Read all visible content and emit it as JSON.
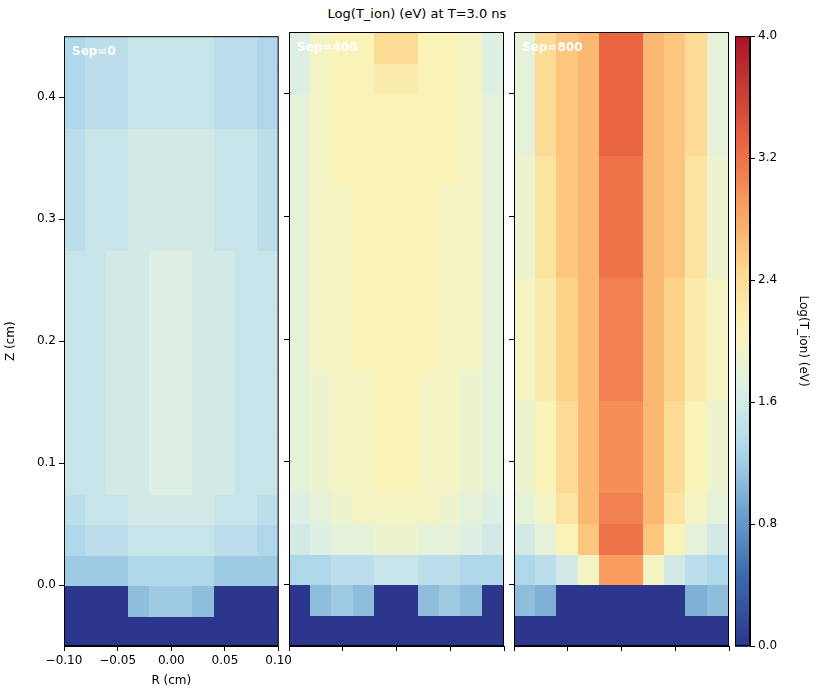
{
  "title": "Log(T_ion) (eV) at T=3.0 ns",
  "colorbar": {
    "label": "Log(T_ion) (eV)",
    "range": [
      0,
      4
    ],
    "ticks": [
      {
        "value": 0,
        "label": "0.0"
      },
      {
        "value": 0.8,
        "label": "0.8"
      },
      {
        "value": 1.6,
        "label": "1.6"
      },
      {
        "value": 2.4,
        "label": "2.4"
      },
      {
        "value": 3.2,
        "label": "3.2"
      },
      {
        "value": 4,
        "label": "4.0"
      }
    ]
  },
  "chart_data": [
    {
      "type": "heatmap",
      "annotation": "Sep=0",
      "xlabel": "R (cm)",
      "ylabel": "Z (cm)",
      "grid": false,
      "xlim": [
        -0.1,
        0.1
      ],
      "ylim": [
        -0.05,
        0.45
      ],
      "xticks": [
        {
          "value": -0.1,
          "label": "−0.10"
        },
        {
          "value": -0.05,
          "label": "−0.05"
        },
        {
          "value": 0,
          "label": "0.00"
        },
        {
          "value": 0.05,
          "label": "0.05"
        },
        {
          "value": 0.1,
          "label": "0.10"
        }
      ],
      "yticks": [
        {
          "value": 0,
          "label": "0.0"
        },
        {
          "value": 0.1,
          "label": "0.1"
        },
        {
          "value": 0.2,
          "label": "0.2"
        },
        {
          "value": 0.3,
          "label": "0.3"
        },
        {
          "value": 0.4,
          "label": "0.4"
        }
      ],
      "x": [
        -0.09,
        -0.07,
        -0.05,
        -0.03,
        -0.01,
        0.01,
        0.03,
        0.05,
        0.07,
        0.09
      ],
      "y": [
        -0.0375,
        -0.0125,
        0.0125,
        0.0375,
        0.0625,
        0.0875,
        0.1125,
        0.1375,
        0.1625,
        0.1875,
        0.2125,
        0.2375,
        0.2625,
        0.2875,
        0.3125,
        0.3375,
        0.3625,
        0.3875,
        0.4125,
        0.4375
      ],
      "values": [
        [
          0,
          0,
          0,
          0,
          0,
          0,
          0,
          0,
          0,
          0
        ],
        [
          0,
          0,
          0,
          1.1,
          1.2,
          1.2,
          1.1,
          0,
          0,
          0
        ],
        [
          1.2,
          1.2,
          1.2,
          1.3,
          1.3,
          1.3,
          1.3,
          1.2,
          1.2,
          1.2
        ],
        [
          1.3,
          1.4,
          1.4,
          1.5,
          1.5,
          1.5,
          1.5,
          1.4,
          1.4,
          1.3
        ],
        [
          1.4,
          1.5,
          1.5,
          1.6,
          1.6,
          1.6,
          1.6,
          1.5,
          1.5,
          1.4
        ],
        [
          1.5,
          1.5,
          1.6,
          1.6,
          1.7,
          1.7,
          1.6,
          1.6,
          1.5,
          1.5
        ],
        [
          1.5,
          1.5,
          1.6,
          1.6,
          1.7,
          1.7,
          1.6,
          1.6,
          1.5,
          1.5
        ],
        [
          1.5,
          1.5,
          1.6,
          1.6,
          1.7,
          1.7,
          1.6,
          1.6,
          1.5,
          1.5
        ],
        [
          1.5,
          1.5,
          1.6,
          1.6,
          1.7,
          1.7,
          1.6,
          1.6,
          1.5,
          1.5
        ],
        [
          1.5,
          1.5,
          1.6,
          1.6,
          1.7,
          1.7,
          1.6,
          1.6,
          1.5,
          1.5
        ],
        [
          1.5,
          1.5,
          1.6,
          1.6,
          1.7,
          1.7,
          1.6,
          1.6,
          1.5,
          1.5
        ],
        [
          1.5,
          1.5,
          1.6,
          1.6,
          1.7,
          1.7,
          1.6,
          1.6,
          1.5,
          1.5
        ],
        [
          1.5,
          1.5,
          1.6,
          1.6,
          1.7,
          1.7,
          1.6,
          1.6,
          1.5,
          1.5
        ],
        [
          1.4,
          1.5,
          1.5,
          1.6,
          1.6,
          1.6,
          1.6,
          1.5,
          1.5,
          1.4
        ],
        [
          1.4,
          1.5,
          1.5,
          1.6,
          1.6,
          1.6,
          1.6,
          1.5,
          1.5,
          1.4
        ],
        [
          1.4,
          1.5,
          1.5,
          1.6,
          1.6,
          1.6,
          1.6,
          1.5,
          1.5,
          1.4
        ],
        [
          1.4,
          1.5,
          1.5,
          1.6,
          1.6,
          1.6,
          1.6,
          1.5,
          1.5,
          1.4
        ],
        [
          1.3,
          1.4,
          1.4,
          1.5,
          1.5,
          1.5,
          1.5,
          1.4,
          1.4,
          1.3
        ],
        [
          1.3,
          1.4,
          1.4,
          1.5,
          1.5,
          1.5,
          1.5,
          1.4,
          1.4,
          1.3
        ],
        [
          1.3,
          1.4,
          1.4,
          1.5,
          1.5,
          1.5,
          1.5,
          1.4,
          1.4,
          1.3
        ]
      ]
    },
    {
      "type": "heatmap",
      "annotation": "Sep=400",
      "grid": false,
      "tick_labels": false,
      "xlim": [
        -0.1,
        0.1
      ],
      "ylim": [
        -0.05,
        0.45
      ],
      "xticks": [
        -0.1,
        -0.05,
        0,
        0.05,
        0.1
      ],
      "yticks": [
        0,
        0.1,
        0.2,
        0.3,
        0.4
      ],
      "x": [
        -0.09,
        -0.07,
        -0.05,
        -0.03,
        -0.01,
        0.01,
        0.03,
        0.05,
        0.07,
        0.09
      ],
      "y": [
        -0.0375,
        -0.0125,
        0.0125,
        0.0375,
        0.0625,
        0.0875,
        0.1125,
        0.1375,
        0.1625,
        0.1875,
        0.2125,
        0.2375,
        0.2625,
        0.2875,
        0.3125,
        0.3375,
        0.3625,
        0.3875,
        0.4125,
        0.4375
      ],
      "values": [
        [
          0,
          0,
          0,
          0,
          0,
          0,
          0,
          0,
          0,
          0
        ],
        [
          0,
          1.1,
          1.2,
          1.1,
          0,
          0,
          1.1,
          1.2,
          1.1,
          0
        ],
        [
          1.3,
          1.3,
          1.4,
          1.4,
          1.5,
          1.5,
          1.4,
          1.4,
          1.3,
          1.3
        ],
        [
          1.6,
          1.7,
          1.8,
          1.8,
          1.9,
          1.9,
          1.8,
          1.8,
          1.7,
          1.6
        ],
        [
          1.7,
          1.8,
          1.9,
          2.0,
          2.0,
          2.0,
          2.0,
          1.9,
          1.8,
          1.7
        ],
        [
          1.8,
          1.9,
          2.0,
          2.0,
          2.1,
          2.1,
          2.0,
          2.0,
          1.9,
          1.8
        ],
        [
          1.8,
          1.9,
          2.0,
          2.0,
          2.1,
          2.1,
          2.0,
          2.0,
          1.9,
          1.8
        ],
        [
          1.8,
          1.9,
          2.0,
          2.0,
          2.1,
          2.1,
          2.0,
          2.0,
          1.9,
          1.8
        ],
        [
          1.8,
          1.9,
          2.0,
          2.0,
          2.1,
          2.1,
          2.0,
          2.0,
          1.9,
          1.8
        ],
        [
          1.8,
          2.0,
          2.0,
          2.1,
          2.1,
          2.1,
          2.1,
          2.0,
          2.0,
          1.8
        ],
        [
          1.8,
          2.0,
          2.0,
          2.1,
          2.1,
          2.1,
          2.1,
          2.0,
          2.0,
          1.8
        ],
        [
          1.8,
          2.0,
          2.0,
          2.1,
          2.1,
          2.1,
          2.1,
          2.0,
          2.0,
          1.8
        ],
        [
          1.8,
          2.0,
          2.0,
          2.1,
          2.1,
          2.1,
          2.1,
          2.0,
          2.0,
          1.8
        ],
        [
          1.8,
          2.0,
          2.0,
          2.1,
          2.1,
          2.1,
          2.1,
          2.0,
          2.0,
          1.8
        ],
        [
          1.8,
          2.0,
          2.0,
          2.1,
          2.1,
          2.1,
          2.1,
          2.0,
          2.0,
          1.8
        ],
        [
          1.8,
          2.0,
          2.1,
          2.1,
          2.1,
          2.1,
          2.1,
          2.1,
          2.0,
          1.8
        ],
        [
          1.8,
          2.0,
          2.1,
          2.1,
          2.1,
          2.1,
          2.1,
          2.1,
          2.0,
          1.8
        ],
        [
          1.8,
          2.0,
          2.1,
          2.1,
          2.1,
          2.1,
          2.1,
          2.1,
          2.0,
          1.8
        ],
        [
          1.7,
          2.0,
          2.1,
          2.1,
          2.2,
          2.2,
          2.1,
          2.1,
          2.0,
          1.7
        ],
        [
          1.7,
          2.0,
          2.1,
          2.1,
          2.4,
          2.4,
          2.1,
          2.1,
          2.0,
          1.7
        ]
      ]
    },
    {
      "type": "heatmap",
      "annotation": "Sep=800",
      "grid": false,
      "tick_labels": false,
      "xlim": [
        -0.1,
        0.1
      ],
      "ylim": [
        -0.05,
        0.45
      ],
      "xticks": [
        -0.1,
        -0.05,
        0,
        0.05,
        0.1
      ],
      "yticks": [
        0,
        0.1,
        0.2,
        0.3,
        0.4
      ],
      "x": [
        -0.09,
        -0.07,
        -0.05,
        -0.03,
        -0.01,
        0.01,
        0.03,
        0.05,
        0.07,
        0.09
      ],
      "y": [
        -0.0375,
        -0.0125,
        0.0125,
        0.0375,
        0.0625,
        0.0875,
        0.1125,
        0.1375,
        0.1625,
        0.1875,
        0.2125,
        0.2375,
        0.2625,
        0.2875,
        0.3125,
        0.3375,
        0.3625,
        0.3875,
        0.4125,
        0.4375
      ],
      "values": [
        [
          0,
          0,
          0,
          0,
          0,
          0,
          0,
          0,
          0,
          0
        ],
        [
          1.1,
          1.0,
          0,
          0,
          0,
          0,
          0,
          0,
          1.0,
          1.1
        ],
        [
          1.3,
          1.4,
          1.6,
          2.0,
          2.9,
          2.9,
          2.0,
          1.6,
          1.4,
          1.3
        ],
        [
          1.6,
          1.8,
          2.1,
          2.6,
          3.2,
          3.2,
          2.6,
          2.1,
          1.8,
          1.6
        ],
        [
          1.8,
          2.0,
          2.3,
          2.7,
          3.1,
          3.1,
          2.7,
          2.3,
          2.0,
          1.8
        ],
        [
          1.9,
          2.1,
          2.4,
          2.7,
          3.0,
          3.0,
          2.7,
          2.4,
          2.1,
          1.9
        ],
        [
          1.9,
          2.1,
          2.4,
          2.7,
          3.0,
          3.0,
          2.7,
          2.4,
          2.1,
          1.9
        ],
        [
          1.9,
          2.1,
          2.4,
          2.7,
          3.0,
          3.0,
          2.7,
          2.4,
          2.1,
          1.9
        ],
        [
          2.0,
          2.2,
          2.5,
          2.7,
          3.1,
          3.1,
          2.7,
          2.5,
          2.2,
          2.0
        ],
        [
          2.0,
          2.2,
          2.5,
          2.7,
          3.1,
          3.1,
          2.7,
          2.5,
          2.2,
          2.0
        ],
        [
          2.0,
          2.2,
          2.5,
          2.7,
          3.1,
          3.1,
          2.7,
          2.5,
          2.2,
          2.0
        ],
        [
          2.0,
          2.2,
          2.5,
          2.7,
          3.1,
          3.1,
          2.7,
          2.5,
          2.2,
          2.0
        ],
        [
          1.9,
          2.3,
          2.6,
          2.7,
          3.2,
          3.2,
          2.7,
          2.6,
          2.3,
          1.9
        ],
        [
          1.9,
          2.3,
          2.6,
          2.7,
          3.2,
          3.2,
          2.7,
          2.6,
          2.3,
          1.9
        ],
        [
          1.9,
          2.3,
          2.6,
          2.7,
          3.2,
          3.2,
          2.7,
          2.6,
          2.3,
          1.9
        ],
        [
          1.9,
          2.3,
          2.6,
          2.7,
          3.2,
          3.2,
          2.7,
          2.6,
          2.3,
          1.9
        ],
        [
          1.8,
          2.4,
          2.6,
          2.7,
          3.3,
          3.3,
          2.7,
          2.6,
          2.4,
          1.8
        ],
        [
          1.8,
          2.4,
          2.6,
          2.7,
          3.3,
          3.3,
          2.7,
          2.6,
          2.4,
          1.8
        ],
        [
          1.8,
          2.4,
          2.6,
          2.7,
          3.3,
          3.3,
          2.7,
          2.6,
          2.4,
          1.8
        ],
        [
          1.8,
          2.4,
          2.6,
          2.7,
          3.3,
          3.3,
          2.7,
          2.6,
          2.4,
          1.8
        ]
      ]
    }
  ]
}
